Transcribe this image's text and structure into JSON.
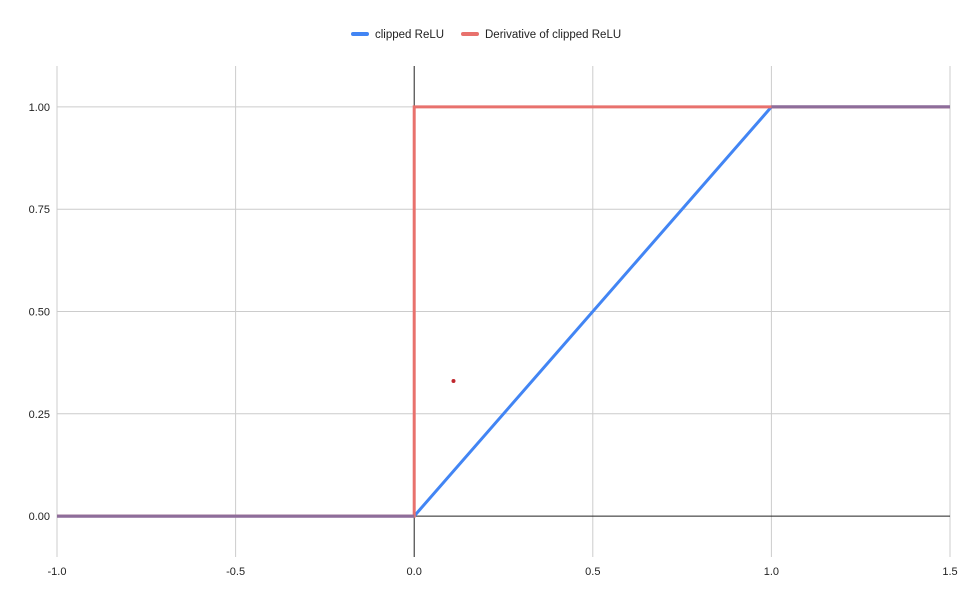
{
  "chart_data": {
    "type": "line",
    "title": "",
    "xlabel": "",
    "ylabel": "",
    "xlim": [
      -1.0,
      1.5
    ],
    "ylim": [
      -0.1,
      1.1
    ],
    "x_ticks": [
      "-1.0",
      "-0.5",
      "0.0",
      "0.5",
      "1.0",
      "1.5"
    ],
    "y_ticks": [
      "0.00",
      "0.25",
      "0.50",
      "0.75",
      "1.00"
    ],
    "grid": true,
    "legend_position": "top-center",
    "series": [
      {
        "name": "clipped ReLU",
        "color": "#4285f4",
        "x": [
          -1.0,
          0.0,
          1.0,
          1.5
        ],
        "y": [
          0.0,
          0.0,
          1.0,
          1.0
        ]
      },
      {
        "name": "Derivative of clipped ReLU",
        "color": "#e8716d",
        "x": [
          -1.0,
          0.0,
          0.0,
          1.0,
          1.5
        ],
        "y": [
          0.0,
          0.0,
          1.0,
          1.0,
          1.0
        ]
      }
    ],
    "overlap_color": "#8e6d9a",
    "annotations": [
      {
        "type": "point",
        "x": 0.11,
        "y": 0.33,
        "color": "#c0272d"
      }
    ]
  }
}
